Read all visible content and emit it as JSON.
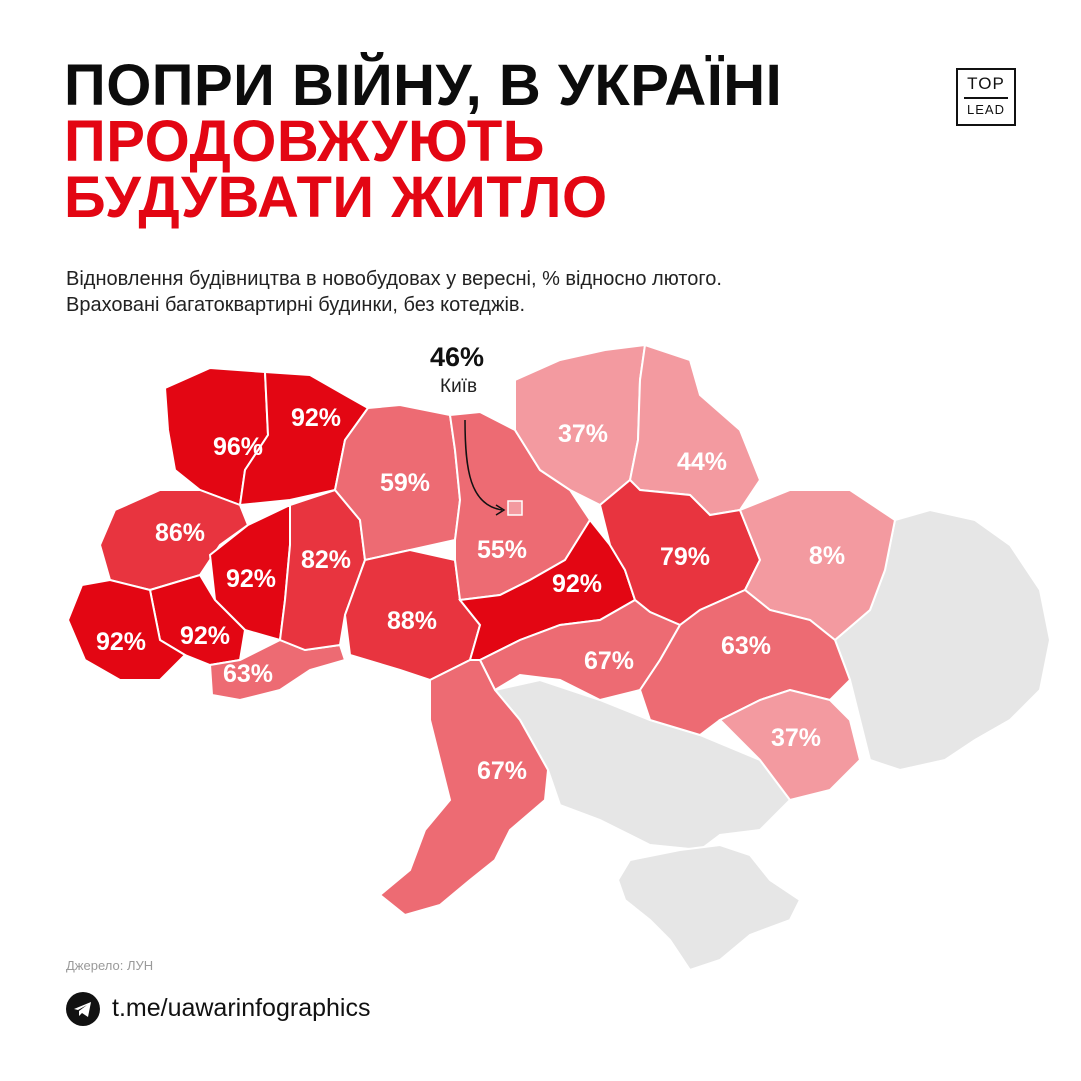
{
  "title": {
    "line1": "ПОПРИ ВІЙНУ, В УКРАЇНІ",
    "line2": "ПРОДОВЖУЮТЬ",
    "line3": "БУДУВАТИ ЖИТЛО"
  },
  "logo": {
    "top": "TOP",
    "bottom": "LEAD"
  },
  "subtitle": {
    "line1": "Відновлення будівництва в новобудовах у вересні, % відносно лютого.",
    "line2": "Враховані багатоквартирні будинки, без котеджів."
  },
  "kyiv": {
    "value": "46%",
    "name": "Київ"
  },
  "regions": [
    {
      "label": "96%",
      "value": 96,
      "color": "#e30613"
    },
    {
      "label": "92%",
      "value": 92,
      "color": "#e30613"
    },
    {
      "label": "86%",
      "value": 86,
      "color": "#e8343f"
    },
    {
      "label": "92%",
      "value": 92,
      "color": "#e30613"
    },
    {
      "label": "92%",
      "value": 92,
      "color": "#e30613"
    },
    {
      "label": "92%",
      "value": 92,
      "color": "#e30613"
    },
    {
      "label": "63%",
      "value": 63,
      "color": "#ed6b73"
    },
    {
      "label": "82%",
      "value": 82,
      "color": "#e8343f"
    },
    {
      "label": "59%",
      "value": 59,
      "color": "#ed6b73"
    },
    {
      "label": "88%",
      "value": 88,
      "color": "#e8343f"
    },
    {
      "label": "55%",
      "value": 55,
      "color": "#ed6b73"
    },
    {
      "label": "92%",
      "value": 92,
      "color": "#e30613"
    },
    {
      "label": "37%",
      "value": 37,
      "color": "#f39aa0"
    },
    {
      "label": "44%",
      "value": 44,
      "color": "#f39aa0"
    },
    {
      "label": "79%",
      "value": 79,
      "color": "#e8343f"
    },
    {
      "label": "8%",
      "value": 8,
      "color": "#f39aa0"
    },
    {
      "label": "67%",
      "value": 67,
      "color": "#ed6b73"
    },
    {
      "label": "63%",
      "value": 63,
      "color": "#ed6b73"
    },
    {
      "label": "37%",
      "value": 37,
      "color": "#f39aa0"
    },
    {
      "label": "67%",
      "value": 67,
      "color": "#ed6b73"
    }
  ],
  "colors": {
    "occupied": "#e6e6e6",
    "accent": "#e30613"
  },
  "source": "Джерело: ЛУН",
  "telegram": {
    "icon": "telegram-icon",
    "link": "t.me/uawarinfographics"
  }
}
